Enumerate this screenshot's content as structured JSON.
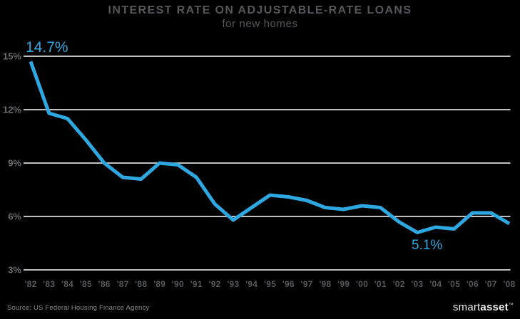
{
  "title": "INTEREST RATE ON ADJUSTABLE-RATE LOANS",
  "subtitle": "for new homes",
  "source": "Source: US Federal Housing Finance Agency",
  "logo": {
    "part1": "smart",
    "part2": "asset",
    "mark": "™"
  },
  "colors": {
    "background": "#000000",
    "line": "#2EA8E1",
    "grid": "#FFFFFF",
    "y_tick_text": "#6C6D70",
    "x_tick_text": "#58595C",
    "title_text": "#56575B",
    "annotation": "#2EA8E1"
  },
  "chart_data": {
    "type": "line",
    "title": "INTEREST RATE ON ADJUSTABLE-RATE LOANS",
    "subtitle": "for new homes",
    "x": [
      "'82",
      "'83",
      "'84",
      "'85",
      "'86",
      "'87",
      "'88",
      "'89",
      "'90",
      "'91",
      "'92",
      "'93",
      "'94",
      "'95",
      "'96",
      "'97",
      "'98",
      "'99",
      "'00",
      "'01",
      "'02",
      "'03",
      "'04",
      "'05",
      "'06",
      "'07",
      "'08"
    ],
    "series": [
      {
        "name": "Interest rate on adjustable-rate loans",
        "values": [
          14.7,
          11.8,
          11.5,
          10.3,
          9.0,
          8.2,
          8.1,
          9.0,
          8.9,
          8.2,
          6.7,
          5.8,
          6.5,
          7.2,
          7.1,
          6.9,
          6.5,
          6.4,
          6.6,
          6.5,
          5.7,
          5.1,
          5.4,
          5.3,
          6.2,
          6.2,
          5.6
        ]
      }
    ],
    "ytick_labels": [
      "15%",
      "12%",
      "9%",
      "6%",
      "3%"
    ],
    "ytick_values": [
      15,
      12,
      9,
      6,
      3
    ],
    "ylim": [
      3,
      15
    ],
    "xlabel": "",
    "ylabel": "",
    "grid": "horizontal",
    "legend": "none",
    "annotations": [
      {
        "label": "14.7%",
        "x": "'82",
        "value": 14.7
      },
      {
        "label": "5.1%",
        "x": "'03",
        "value": 5.1
      }
    ]
  }
}
